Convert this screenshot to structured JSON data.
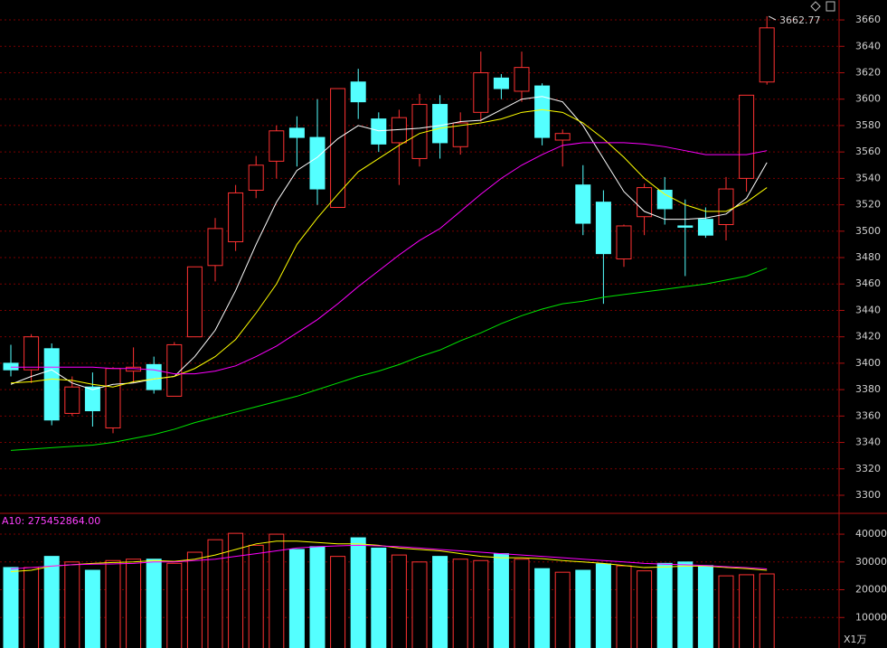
{
  "chart_data": [
    {
      "type": "candlestick",
      "open": [
        3400,
        3395,
        3411,
        3362,
        3382,
        3351,
        3394,
        3399,
        3375,
        3420,
        3474,
        3492,
        3531,
        3553,
        3578,
        3571,
        3518,
        3613,
        3585,
        3567,
        3555,
        3596,
        3564,
        3590,
        3616,
        3606,
        3610,
        3569,
        3535,
        3522,
        3479,
        3511,
        3531,
        3504,
        3509,
        3505,
        3540,
        3613
      ],
      "high": [
        3414,
        3422,
        3415,
        3390,
        3393,
        3397,
        3412,
        3405,
        3416,
        3473,
        3510,
        3535,
        3557,
        3580,
        3587,
        3600,
        3608,
        3623,
        3590,
        3592,
        3604,
        3603,
        3590,
        3636,
        3619,
        3636,
        3612,
        3577,
        3550,
        3531,
        3505,
        3536,
        3541,
        3524,
        3518,
        3541,
        3603,
        3662.77
      ],
      "low": [
        3390,
        3385,
        3353,
        3360,
        3352,
        3347,
        3385,
        3377,
        3375,
        3420,
        3462,
        3485,
        3525,
        3540,
        3549,
        3520,
        3518,
        3585,
        3560,
        3535,
        3549,
        3555,
        3558,
        3583,
        3600,
        3598,
        3565,
        3549,
        3497,
        3445,
        3473,
        3497,
        3505,
        3466,
        3495,
        3493,
        3530,
        3611
      ],
      "close": [
        3395,
        3420,
        3357,
        3382,
        3364,
        3396,
        3397,
        3380,
        3414,
        3473,
        3502,
        3529,
        3550,
        3576,
        3571,
        3532,
        3608,
        3598,
        3566,
        3586,
        3596,
        3567,
        3582,
        3620,
        3608,
        3624,
        3571,
        3574,
        3506,
        3483,
        3504,
        3533,
        3517,
        3503,
        3497,
        3532,
        3603,
        3654
      ],
      "up_color": "#ff3232",
      "down_color": "#54ffff",
      "series": [
        {
          "color": "#ffffff",
          "values": [
            3384,
            3390,
            3395,
            3385,
            3380,
            3384,
            3385,
            3388,
            3390,
            3405,
            3425,
            3455,
            3490,
            3522,
            3546,
            3556,
            3570,
            3580,
            3576,
            3577,
            3578,
            3580,
            3583,
            3584,
            3592,
            3600,
            3602,
            3598,
            3580,
            3555,
            3530,
            3515,
            3509,
            3509,
            3510,
            3513,
            3525,
            3552
          ]
        },
        {
          "color": "#ffff00",
          "values": [
            3385,
            3386,
            3388,
            3387,
            3384,
            3382,
            3386,
            3388,
            3390,
            3396,
            3405,
            3418,
            3438,
            3460,
            3490,
            3510,
            3528,
            3545,
            3555,
            3565,
            3574,
            3578,
            3580,
            3582,
            3585,
            3590,
            3592,
            3590,
            3582,
            3570,
            3556,
            3540,
            3528,
            3520,
            3515,
            3515,
            3522,
            3533
          ]
        },
        {
          "color": "#ff00ff",
          "values": [
            3397,
            3397,
            3397,
            3397,
            3397,
            3396,
            3396,
            3395,
            3392,
            3392,
            3394,
            3398,
            3405,
            3413,
            3423,
            3433,
            3445,
            3458,
            3470,
            3482,
            3493,
            3502,
            3515,
            3528,
            3540,
            3550,
            3558,
            3565,
            3567,
            3567,
            3567,
            3566,
            3564,
            3561,
            3558,
            3558,
            3558,
            3561
          ]
        },
        {
          "color": "#00e600",
          "values": [
            3334,
            3335,
            3336,
            3337,
            3338,
            3340,
            3343,
            3346,
            3350,
            3355,
            3359,
            3363,
            3367,
            3371,
            3375,
            3380,
            3385,
            3390,
            3394,
            3399,
            3405,
            3410,
            3417,
            3423,
            3430,
            3436,
            3441,
            3445,
            3447,
            3450,
            3452,
            3454,
            3456,
            3458,
            3460,
            3463,
            3466,
            3472
          ]
        }
      ],
      "ylim": [
        3286.3,
        3675.1
      ],
      "yticks": [
        3300,
        3320,
        3340,
        3360,
        3380,
        3400,
        3420,
        3440,
        3460,
        3480,
        3500,
        3520,
        3540,
        3560,
        3580,
        3600,
        3620,
        3640,
        3660
      ],
      "grid": true
    },
    {
      "type": "bar",
      "label": "A10: 275452864.00",
      "unit_label": "X1万",
      "values": [
        28000,
        28000,
        32000,
        30000,
        27000,
        30500,
        31000,
        31000,
        29500,
        33500,
        38000,
        40300,
        36000,
        40000,
        34500,
        35500,
        32000,
        38700,
        35000,
        32500,
        30000,
        32000,
        31000,
        30500,
        33000,
        31000,
        27600,
        26300,
        27000,
        29300,
        28600,
        26800,
        29500,
        30000,
        28700,
        25000,
        25400,
        25700
      ],
      "series": [
        {
          "color": "#ffff00",
          "values": [
            26500,
            27000,
            28500,
            29000,
            29500,
            29800,
            30000,
            30500,
            30200,
            31000,
            32500,
            34500,
            36500,
            37500,
            37500,
            37000,
            36500,
            36500,
            36000,
            35000,
            34500,
            34000,
            33000,
            32000,
            31500,
            31500,
            31200,
            30500,
            30000,
            29500,
            28700,
            28000,
            28200,
            28500,
            28500,
            28000,
            27600,
            27000
          ]
        },
        {
          "color": "#ff00ff",
          "values": [
            27500,
            28000,
            28500,
            29000,
            29200,
            29300,
            29500,
            30000,
            30000,
            30500,
            31000,
            32000,
            33000,
            34000,
            35000,
            35500,
            35800,
            36000,
            35800,
            35500,
            35000,
            34500,
            34000,
            33500,
            33000,
            32500,
            32000,
            31500,
            31000,
            30500,
            30000,
            29500,
            29200,
            29000,
            28700,
            28300,
            28000,
            27500
          ]
        }
      ],
      "ylim": [
        0,
        47500
      ],
      "yticks": [
        10000,
        20000,
        30000,
        40000
      ],
      "grid": true
    }
  ]
}
